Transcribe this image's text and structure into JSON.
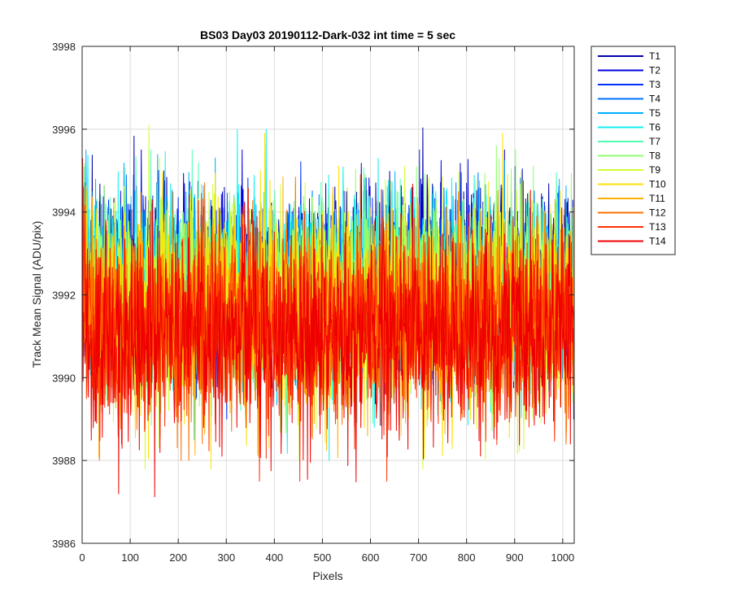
{
  "chart_data": {
    "type": "line",
    "title": "BS03 Day03 20190112-Dark-032 int time = 5 sec",
    "xlabel": "Pixels",
    "ylabel": "Track Mean Signal (ADU/pix)",
    "xlim": [
      0,
      1024
    ],
    "ylim": [
      3986,
      3998
    ],
    "xticks": [
      0,
      100,
      200,
      300,
      400,
      500,
      600,
      700,
      800,
      900,
      1000
    ],
    "yticks": [
      3986,
      3988,
      3990,
      3992,
      3994,
      3996,
      3998
    ],
    "grid": true,
    "legend_position": "outside-top-right",
    "n_points": 1024,
    "series": [
      {
        "name": "T1",
        "color": "#0000aa",
        "mean": 3992.4,
        "min": 3989.0,
        "max": 3996.4
      },
      {
        "name": "T2",
        "color": "#0000e0",
        "mean": 3992.4,
        "min": 3989.0,
        "max": 3995.5
      },
      {
        "name": "T3",
        "color": "#0030ff",
        "mean": 3992.3,
        "min": 3989.0,
        "max": 3995.5
      },
      {
        "name": "T4",
        "color": "#0070ff",
        "mean": 3992.3,
        "min": 3989.0,
        "max": 3995.3
      },
      {
        "name": "T5",
        "color": "#00b0ff",
        "mean": 3992.2,
        "min": 3988.5,
        "max": 3995.5
      },
      {
        "name": "T6",
        "color": "#10f0f0",
        "mean": 3992.1,
        "min": 3988.0,
        "max": 3996.0
      },
      {
        "name": "T7",
        "color": "#50ffb0",
        "mean": 3992.0,
        "min": 3988.5,
        "max": 3995.5
      },
      {
        "name": "T8",
        "color": "#90ff70",
        "mean": 3991.9,
        "min": 3988.5,
        "max": 3996.5
      },
      {
        "name": "T9",
        "color": "#d0ff30",
        "mean": 3991.8,
        "min": 3987.8,
        "max": 3996.7
      },
      {
        "name": "T10",
        "color": "#ffe000",
        "mean": 3991.6,
        "min": 3987.7,
        "max": 3995.9
      },
      {
        "name": "T11",
        "color": "#ffb000",
        "mean": 3991.5,
        "min": 3988.0,
        "max": 3995.0
      },
      {
        "name": "T12",
        "color": "#ff7000",
        "mean": 3991.3,
        "min": 3988.0,
        "max": 3995.0
      },
      {
        "name": "T13",
        "color": "#ff3000",
        "mean": 3991.2,
        "min": 3987.5,
        "max": 3995.2
      },
      {
        "name": "T14",
        "color": "#ee0000",
        "mean": 3991.1,
        "min": 3986.8,
        "max": 3995.3
      }
    ]
  }
}
